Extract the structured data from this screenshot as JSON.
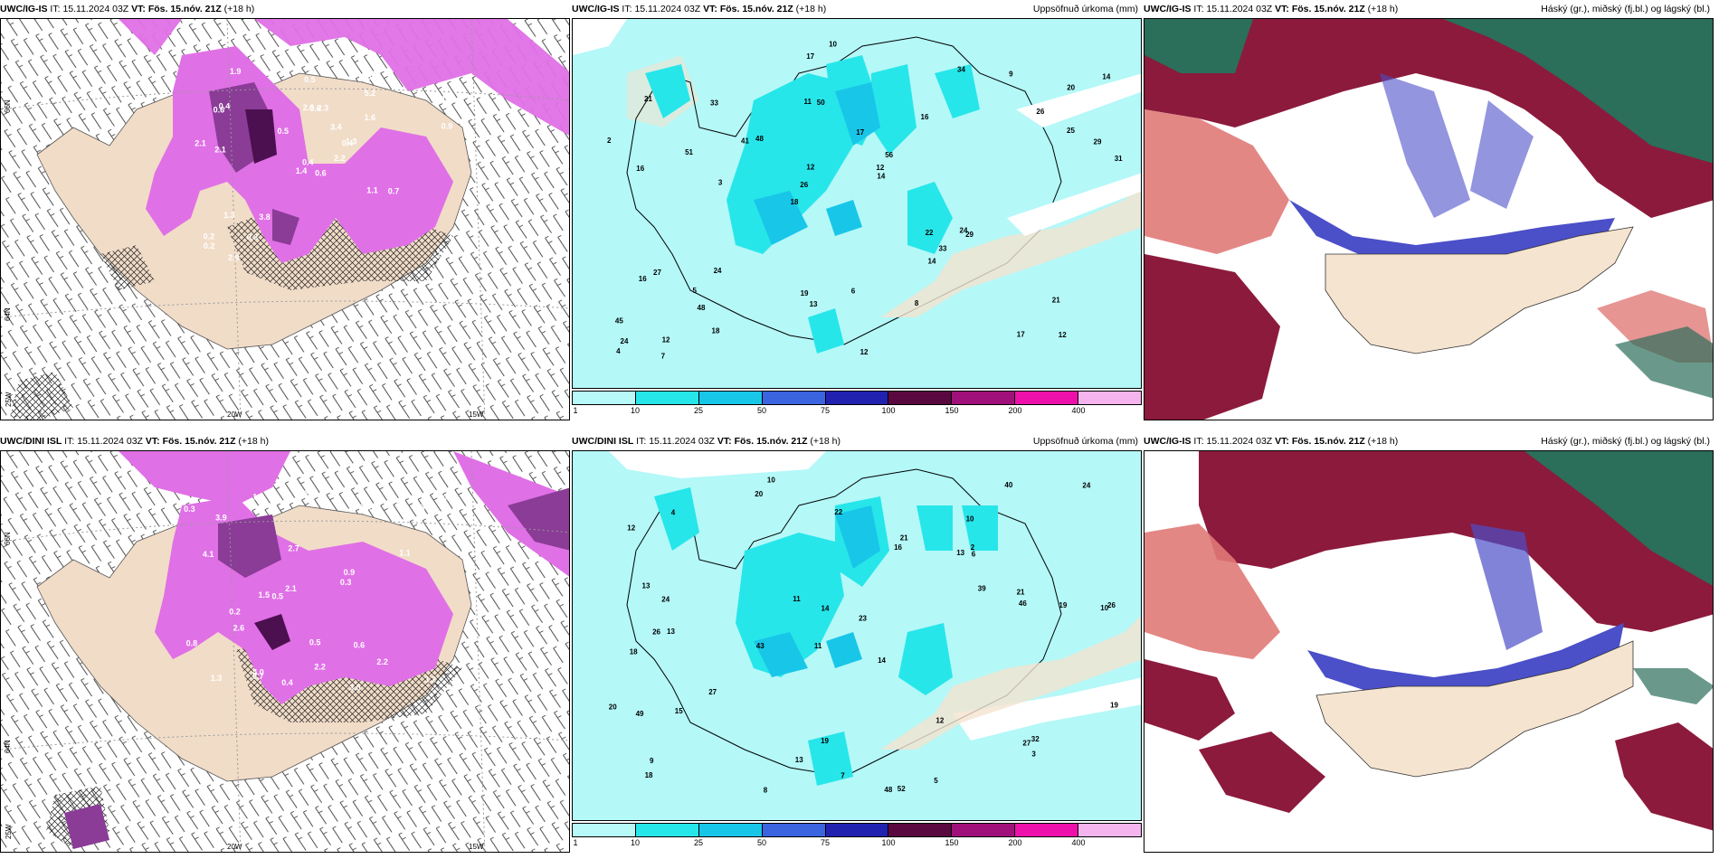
{
  "rows": [
    {
      "wind": {
        "model": "UWC/IG-IS",
        "it_label": "IT:",
        "it": "15.11.2024 03Z",
        "vt_label": "VT:",
        "vt": "Fös. 15.nóv. 21Z",
        "lead": "(+18 h)",
        "lat_labels": [
          "66N",
          "64N",
          "25W"
        ],
        "lon_labels": [
          "20W",
          "15W"
        ]
      },
      "precip": {
        "model": "UWC/IG-IS",
        "it_label": "IT:",
        "it": "15.11.2024 03Z",
        "vt_label": "VT:",
        "vt": "Fös. 15.nóv. 21Z",
        "lead": "(+18 h)",
        "title": "Uppsöfnuð úrkoma (mm)",
        "numbers": [
          "12",
          "16",
          "20",
          "18",
          "16",
          "12",
          "11",
          "17",
          "27",
          "48",
          "45",
          "48",
          "50",
          "56",
          "29",
          "21",
          "17",
          "31",
          "22",
          "25",
          "26",
          "19",
          "12",
          "33",
          "34",
          "24",
          "17",
          "21",
          "24",
          "12",
          "41",
          "51",
          "14",
          "18",
          "29",
          "12",
          "24",
          "13",
          "14",
          "16",
          "26",
          "14",
          "33",
          "8",
          "5",
          "7",
          "4",
          "6",
          "9",
          "10",
          "3",
          "2"
        ]
      },
      "clouds": {
        "model": "UWC/IG-IS",
        "it_label": "IT:",
        "it": "15.11.2024 03Z",
        "vt_label": "VT:",
        "vt": "Fös. 15.nóv. 21Z",
        "lead": "(+18 h)",
        "title": "Háský (gr.), miðský (fj.bl.) og lágský (bl.)"
      }
    },
    {
      "wind": {
        "model": "UWC/DINI ISL",
        "it_label": "IT:",
        "it": "15.11.2024 03Z",
        "vt_label": "VT:",
        "vt": "Fös. 15.nóv. 21Z",
        "lead": "(+18 h)",
        "lat_labels": [
          "66N",
          "64N",
          "25W"
        ],
        "lon_labels": [
          "20W",
          "15W"
        ]
      },
      "precip": {
        "model": "UWC/DINI ISL",
        "it_label": "IT:",
        "it": "15.11.2024 03Z",
        "vt_label": "VT:",
        "vt": "Fös. 15.nóv. 21Z",
        "lead": "(+18 h)",
        "title": "Uppsöfnuð úrkoma (mm)",
        "numbers": [
          "10",
          "10",
          "10",
          "11",
          "14",
          "13",
          "12",
          "13",
          "18",
          "16",
          "23",
          "18",
          "20",
          "43",
          "48",
          "52",
          "19",
          "40",
          "39",
          "27",
          "24",
          "26",
          "26",
          "19",
          "20",
          "13",
          "14",
          "46",
          "32",
          "49",
          "27",
          "21",
          "15",
          "11",
          "12",
          "19",
          "21",
          "13",
          "24",
          "22",
          "9",
          "8",
          "5",
          "4",
          "7",
          "6",
          "3",
          "2"
        ]
      },
      "clouds": {
        "model": "UWC/IG-IS",
        "it_label": "IT:",
        "it": "15.11.2024 03Z",
        "vt_label": "VT:",
        "vt": "Fös. 15.nóv. 21Z",
        "lead": "(+18 h)",
        "title": "Háský (gr.), miðský (fj.bl.) og lágský (bl.)"
      }
    }
  ],
  "colorbar": {
    "ticks": [
      "1",
      "10",
      "25",
      "50",
      "75",
      "100",
      "150",
      "200",
      "400"
    ],
    "colors": [
      "#b7f8f8",
      "#27e6ea",
      "#18c6e8",
      "#3a64e0",
      "#2222b0",
      "#5a0840",
      "#a0107a",
      "#ee10aa",
      "#f6b4ee"
    ]
  },
  "wind_values_top": [
    "0.6",
    "0.6",
    "0.4",
    "0.2",
    "0.4",
    "3.8",
    "4.6",
    "2.3",
    "5.2",
    "2.2",
    "1.9",
    "2.8",
    "2.1",
    "1.8",
    "1.4",
    "1.6",
    "2.9",
    "2.6",
    "3.4",
    "1.3",
    "0.5",
    "0.2",
    "0.3",
    "0.6",
    "1.3",
    "0.7",
    "0.4",
    "0.5",
    "2.1",
    "1.1",
    "0.9"
  ],
  "wind_values_bottom": [
    "0.4",
    "3.0",
    "4.0",
    "2.2",
    "1.9",
    "3.9",
    "1.5",
    "1.2",
    "1.0",
    "2.7",
    "1.8",
    "2.2",
    "2.1",
    "0.5",
    "0.4",
    "0.3",
    "4.1",
    "0.7",
    "0.5",
    "0.3",
    "0.6",
    "0.7",
    "0.9",
    "1.3",
    "1.1",
    "0.2",
    "0.8",
    "2.6"
  ],
  "colors": {
    "ocean_precip": "#b4f8f8",
    "land": "#f4e4d0",
    "land_wind": "#f1dcc8",
    "wind_magenta": "#e070e6",
    "wind_purple": "#8a3c96",
    "wind_dark": "#4c1050",
    "cloud_high": "#2b6e5a",
    "cloud_mid_red": "#8c1a3c",
    "cloud_low_blue": "#4b4fc8",
    "cloud_pink": "#e07a78"
  }
}
